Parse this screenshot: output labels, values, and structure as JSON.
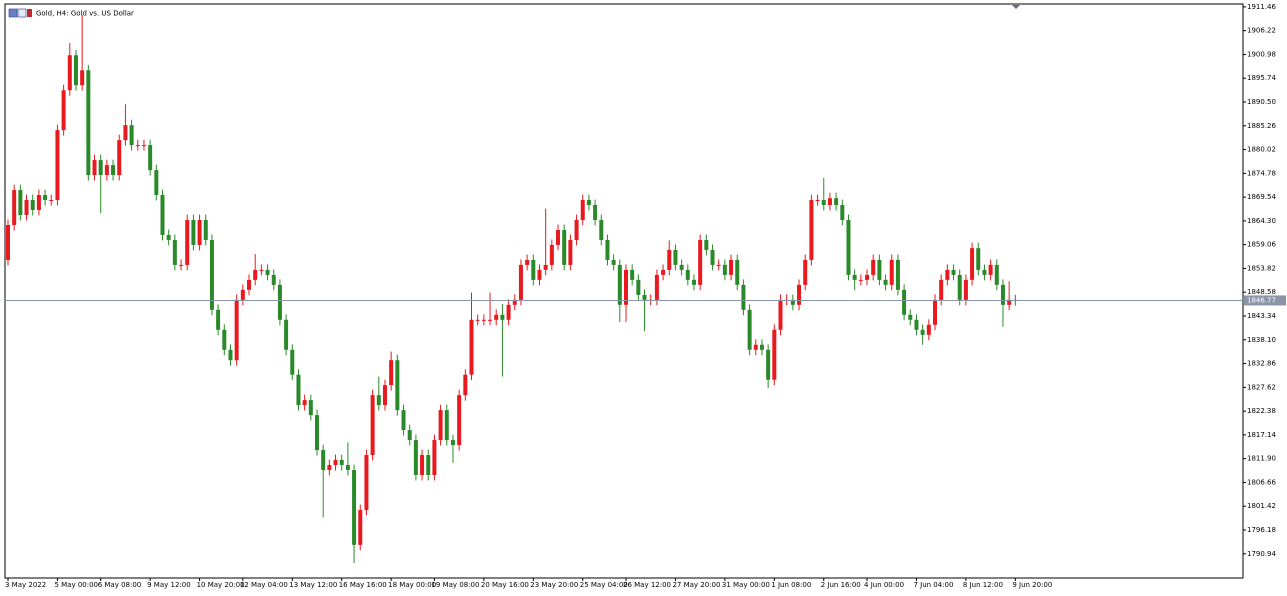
{
  "chart_data": {
    "type": "candlestick",
    "title": "Gold, H4:  Gold vs. US Dollar",
    "up_color": "#e8191f",
    "down_color": "#2a8a2a",
    "ylim": [
      1785.6,
      1912.1
    ],
    "yticks": [
      1911.46,
      1906.22,
      1900.98,
      1895.74,
      {
        "value": 1890.5,
        "label": "1890.50"
      },
      1885.26,
      1880.02,
      1874.78,
      1869.54,
      {
        "value": 1864.3,
        "label": "1864.30"
      },
      1859.06,
      1853.82,
      1848.58,
      1843.34,
      {
        "value": 1838.1,
        "label": "1838.10"
      },
      1832.86,
      1827.62,
      1822.38,
      1817.14,
      {
        "value": 1811.9,
        "label": "1811.90"
      },
      1806.66,
      1801.42,
      1796.18,
      1790.94
    ],
    "xticks": [
      {
        "value": 0,
        "label": "3 May 2022"
      },
      {
        "value": 8,
        "label": "5 May 00:00"
      },
      {
        "value": 15,
        "label": "6 May 08:00"
      },
      {
        "value": 23,
        "label": "9 May 12:00"
      },
      {
        "value": 31,
        "label": "10 May 20:00"
      },
      {
        "value": 38,
        "label": "12 May 04:00"
      },
      {
        "value": 46,
        "label": "13 May 12:00"
      },
      {
        "value": 54,
        "label": "16 May 16:00"
      },
      {
        "value": 62,
        "label": "18 May 00:00"
      },
      {
        "value": 69,
        "label": "19 May 08:00"
      },
      {
        "value": 77,
        "label": "20 May 16:00"
      },
      {
        "value": 85,
        "label": "23 May 20:00"
      },
      {
        "value": 93,
        "label": "25 May 04:00"
      },
      {
        "value": 100,
        "label": "26 May 12:00"
      },
      {
        "value": 108,
        "label": "27 May 20:00"
      },
      {
        "value": 116,
        "label": "31 May 00:00"
      },
      {
        "value": 124,
        "label": "1 Jun 08:00"
      },
      {
        "value": 132,
        "label": "2 Jun 16:00"
      },
      {
        "value": 139,
        "label": "4 Jun 00:00"
      },
      {
        "value": 147,
        "label": "7 Jun 04:00"
      },
      {
        "value": 155,
        "label": "8 Jun 12:00"
      },
      {
        "value": 163,
        "label": "9 Jun 20:00"
      }
    ],
    "last_price": 1846.77,
    "open": [
      1855.7,
      1863.4,
      1871.1,
      1865.6,
      1868.9,
      1866.7,
      1870.0,
      1868.9,
      1868.9,
      1884.3,
      1893.1,
      1900.8,
      1894.2,
      1897.5,
      1874.4,
      1877.7,
      1874.4,
      1876.6,
      1874.4,
      1882.1,
      1885.4,
      1881.0,
      1881.0,
      1881.0,
      1875.5,
      1870.0,
      1861.2,
      1860.1,
      1854.6,
      1854.6,
      1864.5,
      1859.0,
      1864.5,
      1860.1,
      1844.7,
      1840.3,
      1835.9,
      1833.6,
      1846.9,
      1849.1,
      1851.3,
      1853.5,
      1853.5,
      1852.4,
      1850.2,
      1842.5,
      1835.9,
      1830.4,
      1823.7,
      1824.8,
      1821.5,
      1813.8,
      1809.4,
      1810.5,
      1811.6,
      1810.5,
      1809.4,
      1792.9,
      1800.6,
      1812.7,
      1825.9,
      1823.7,
      1828.1,
      1833.6,
      1822.6,
      1818.2,
      1816.0,
      1808.3,
      1812.7,
      1808.3,
      1816.0,
      1822.6,
      1816.0,
      1814.9,
      1825.9,
      1830.4,
      1842.5,
      1842.5,
      1842.5,
      1842.5,
      1843.6,
      1842.5,
      1845.8,
      1846.9,
      1854.6,
      1855.7,
      1851.3,
      1853.5,
      1854.6,
      1859.0,
      1862.3,
      1854.6,
      1860.1,
      1864.5,
      1868.9,
      1867.8,
      1864.5,
      1860.1,
      1855.7,
      1854.6,
      1845.8,
      1853.5,
      1851.3,
      1848.0,
      1846.9,
      1846.9,
      1852.4,
      1853.5,
      1857.9,
      1854.6,
      1853.5,
      1851.3,
      1850.2,
      1860.1,
      1857.9,
      1854.6,
      1854.6,
      1852.4,
      1855.7,
      1850.2,
      1844.7,
      1835.9,
      1837.0,
      1835.9,
      1829.3,
      1840.3,
      1846.9,
      1846.9,
      1845.8,
      1850.2,
      1855.7,
      1868.9,
      1868.9,
      1867.8,
      1869.3,
      1867.8,
      1864.5,
      1852.4,
      1851.3,
      1851.3,
      1852.4,
      1855.7,
      1851.3,
      1850.2,
      1855.7,
      1849.1,
      1843.6,
      1842.5,
      1840.3,
      1839.2,
      1841.4,
      1846.9,
      1851.3,
      1853.5,
      1852.4,
      1846.9,
      1851.3,
      1858.3,
      1853.5,
      1852.4,
      1854.6,
      1850.2,
      1845.8,
      1846.9
    ],
    "high": [
      1864.6,
      1872.3,
      1872.3,
      1870.1,
      1870.1,
      1871.2,
      1871.2,
      1870.1,
      1885.5,
      1894.3,
      1903.5,
      1902.0,
      1909.7,
      1898.7,
      1878.9,
      1878.9,
      1877.8,
      1877.8,
      1883.3,
      1890.0,
      1886.6,
      1882.2,
      1882.2,
      1882.2,
      1876.7,
      1871.2,
      1862.4,
      1861.3,
      1855.8,
      1865.7,
      1865.7,
      1865.7,
      1865.7,
      1861.3,
      1845.9,
      1841.5,
      1837.1,
      1848.1,
      1850.3,
      1852.5,
      1857.0,
      1854.7,
      1854.7,
      1853.6,
      1851.4,
      1843.7,
      1837.1,
      1831.6,
      1826.0,
      1826.0,
      1822.7,
      1815.0,
      1811.7,
      1812.8,
      1812.8,
      1815.5,
      1810.6,
      1801.8,
      1813.9,
      1827.1,
      1830.0,
      1829.3,
      1835.5,
      1834.8,
      1823.8,
      1819.4,
      1817.2,
      1813.9,
      1813.9,
      1817.2,
      1823.8,
      1823.8,
      1817.2,
      1827.1,
      1831.6,
      1848.5,
      1843.7,
      1843.7,
      1848.5,
      1844.8,
      1846.0,
      1847.0,
      1848.1,
      1855.8,
      1856.9,
      1856.9,
      1854.7,
      1867.0,
      1860.2,
      1863.5,
      1863.5,
      1861.3,
      1865.7,
      1870.1,
      1870.1,
      1869.0,
      1865.7,
      1861.3,
      1856.9,
      1855.8,
      1854.7,
      1854.7,
      1852.5,
      1849.2,
      1848.1,
      1853.6,
      1854.7,
      1860.0,
      1859.1,
      1855.8,
      1854.7,
      1852.5,
      1861.3,
      1861.3,
      1859.1,
      1855.8,
      1855.8,
      1856.9,
      1856.9,
      1851.4,
      1845.9,
      1838.2,
      1838.2,
      1837.1,
      1841.5,
      1848.1,
      1848.1,
      1848.1,
      1851.4,
      1856.9,
      1870.1,
      1870.1,
      1873.8,
      1870.5,
      1870.5,
      1869.0,
      1865.7,
      1853.6,
      1852.5,
      1853.6,
      1856.9,
      1856.9,
      1852.5,
      1856.9,
      1856.9,
      1850.3,
      1844.8,
      1843.7,
      1841.5,
      1842.6,
      1848.1,
      1852.5,
      1854.7,
      1854.7,
      1853.6,
      1852.5,
      1859.5,
      1859.5,
      1854.7,
      1855.8,
      1855.8,
      1851.4,
      1851.0,
      1848.0
    ],
    "low": [
      1854.5,
      1862.2,
      1864.4,
      1864.4,
      1865.5,
      1865.5,
      1867.7,
      1867.7,
      1867.7,
      1883.1,
      1891.9,
      1893.0,
      1893.0,
      1873.2,
      1873.2,
      1866.0,
      1873.2,
      1873.2,
      1873.2,
      1880.9,
      1879.8,
      1879.8,
      1879.8,
      1874.3,
      1868.8,
      1860.0,
      1858.9,
      1853.4,
      1853.4,
      1853.4,
      1857.8,
      1857.8,
      1858.9,
      1843.5,
      1839.1,
      1834.7,
      1832.4,
      1832.4,
      1845.7,
      1847.9,
      1850.1,
      1852.3,
      1851.2,
      1849.0,
      1841.3,
      1834.7,
      1829.2,
      1822.5,
      1822.5,
      1820.3,
      1812.6,
      1799.0,
      1808.2,
      1809.3,
      1809.3,
      1808.2,
      1788.9,
      1791.7,
      1799.4,
      1811.5,
      1822.5,
      1822.5,
      1826.9,
      1821.4,
      1817.0,
      1814.8,
      1807.1,
      1807.1,
      1807.1,
      1807.1,
      1814.8,
      1814.8,
      1811.0,
      1813.7,
      1824.7,
      1829.2,
      1841.3,
      1841.3,
      1841.3,
      1841.3,
      1830.0,
      1841.3,
      1844.6,
      1845.7,
      1853.4,
      1850.1,
      1850.1,
      1852.3,
      1853.4,
      1857.8,
      1853.4,
      1853.4,
      1858.9,
      1863.3,
      1866.6,
      1863.3,
      1858.9,
      1854.5,
      1853.4,
      1842.0,
      1842.0,
      1850.1,
      1846.8,
      1840.0,
      1845.7,
      1845.7,
      1851.2,
      1852.3,
      1853.4,
      1852.3,
      1850.1,
      1849.0,
      1849.0,
      1856.7,
      1853.4,
      1853.4,
      1851.2,
      1851.2,
      1849.0,
      1843.5,
      1834.7,
      1834.7,
      1834.7,
      1827.5,
      1828.1,
      1839.1,
      1845.7,
      1844.6,
      1844.6,
      1849.0,
      1854.5,
      1867.7,
      1866.6,
      1866.6,
      1866.6,
      1863.3,
      1851.2,
      1849.0,
      1850.1,
      1850.1,
      1851.2,
      1850.1,
      1849.0,
      1849.0,
      1847.9,
      1842.4,
      1841.3,
      1839.1,
      1837.0,
      1838.0,
      1840.2,
      1845.7,
      1850.1,
      1851.2,
      1845.7,
      1845.7,
      1850.1,
      1852.3,
      1851.2,
      1851.2,
      1849.0,
      1841.0,
      1844.6,
      1845.6
    ],
    "close": [
      1863.4,
      1871.1,
      1865.6,
      1868.9,
      1866.7,
      1870.0,
      1868.9,
      1868.9,
      1884.3,
      1893.1,
      1900.8,
      1894.2,
      1897.5,
      1874.4,
      1877.7,
      1874.4,
      1876.6,
      1874.4,
      1882.1,
      1885.4,
      1881.0,
      1881.0,
      1881.0,
      1875.5,
      1870.0,
      1861.2,
      1860.1,
      1854.6,
      1854.6,
      1864.5,
      1859.0,
      1864.5,
      1860.1,
      1844.7,
      1840.3,
      1835.9,
      1833.6,
      1846.9,
      1849.1,
      1851.3,
      1853.5,
      1853.5,
      1852.4,
      1850.2,
      1842.5,
      1835.9,
      1830.4,
      1823.7,
      1824.8,
      1821.5,
      1813.8,
      1809.4,
      1810.5,
      1811.6,
      1810.5,
      1809.4,
      1792.9,
      1800.6,
      1812.7,
      1825.9,
      1823.7,
      1828.1,
      1833.6,
      1822.6,
      1818.2,
      1816.0,
      1808.3,
      1812.7,
      1808.3,
      1816.0,
      1822.6,
      1816.0,
      1814.9,
      1825.9,
      1830.4,
      1842.5,
      1842.5,
      1842.5,
      1842.5,
      1843.6,
      1842.5,
      1845.8,
      1846.9,
      1854.6,
      1855.7,
      1851.3,
      1853.5,
      1854.6,
      1859.0,
      1862.3,
      1854.6,
      1860.1,
      1864.5,
      1868.9,
      1867.8,
      1864.5,
      1860.1,
      1855.7,
      1854.6,
      1845.8,
      1853.5,
      1851.3,
      1848.0,
      1846.9,
      1846.9,
      1852.4,
      1853.5,
      1857.9,
      1854.6,
      1853.5,
      1851.3,
      1850.2,
      1860.1,
      1857.9,
      1854.6,
      1854.6,
      1852.4,
      1855.7,
      1850.2,
      1844.7,
      1835.9,
      1837.0,
      1835.9,
      1829.3,
      1840.3,
      1846.9,
      1846.9,
      1845.8,
      1850.2,
      1855.7,
      1868.9,
      1868.9,
      1867.8,
      1869.3,
      1867.8,
      1864.5,
      1852.4,
      1851.3,
      1851.3,
      1852.4,
      1855.7,
      1851.3,
      1850.2,
      1855.7,
      1849.1,
      1843.6,
      1842.5,
      1840.3,
      1839.2,
      1841.4,
      1846.9,
      1851.3,
      1853.5,
      1852.4,
      1846.9,
      1851.3,
      1858.3,
      1853.5,
      1852.4,
      1854.6,
      1850.2,
      1845.8,
      1846.9,
      1846.8
    ]
  }
}
